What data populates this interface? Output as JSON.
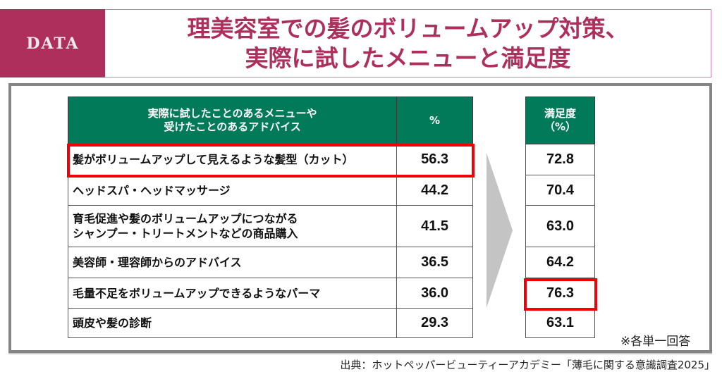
{
  "badge": {
    "label": "DATA",
    "color": "#AE2F5C"
  },
  "title": {
    "line1": "理美容室での髪のボリュームアップ対策、",
    "line2": "実際に試したメニューと満足度",
    "color": "#AE2F5C"
  },
  "table_left": {
    "header_label_line1": "実際に試したことのあるメニューや",
    "header_label_line2": "受けたことのあるアドバイス",
    "header_pct": "%",
    "header_color": "#007A58",
    "rows": [
      {
        "label": "髪がボリュームアップして見えるような髪型（カット）",
        "pct": "56.3",
        "highlighted": true
      },
      {
        "label": "ヘッドスパ・ヘッドマッサージ",
        "pct": "44.2"
      },
      {
        "label_line1": "育毛促進や髪のボリュームアップにつながる",
        "label_line2": "シャンプー・トリートメントなどの商品購入",
        "pct": "41.5"
      },
      {
        "label": "美容師・理容師からのアドバイス",
        "pct": "36.5"
      },
      {
        "label": "毛量不足をボリュームアップできるようなパーマ",
        "pct": "36.0"
      },
      {
        "label": "頭皮や髪の診断",
        "pct": "29.3"
      }
    ]
  },
  "table_right": {
    "header_line1": "満足度",
    "header_line2": "（%）",
    "rows": [
      {
        "value": "72.8"
      },
      {
        "value": "70.4"
      },
      {
        "value": "63.0"
      },
      {
        "value": "64.2"
      },
      {
        "value": "76.3",
        "highlighted": true
      },
      {
        "value": "63.1"
      }
    ]
  },
  "highlight_color": "#F0000A",
  "note": "※各単一回答",
  "source": "出典：ホットペッパービューティーアカデミー「薄毛に関する意識調査2025」",
  "chart_data": {
    "type": "table",
    "title": "理美容室での髪のボリュームアップ対策、実際に試したメニューと満足度",
    "columns": [
      "実際に試したことのあるメニューや受けたことのあるアドバイス",
      "%",
      "満足度（%）"
    ],
    "rows": [
      [
        "髪がボリュームアップして見えるような髪型（カット）",
        56.3,
        72.8
      ],
      [
        "ヘッドスパ・ヘッドマッサージ",
        44.2,
        70.4
      ],
      [
        "育毛促進や髪のボリュームアップにつながるシャンプー・トリートメントなどの商品購入",
        41.5,
        63.0
      ],
      [
        "美容師・理容師からのアドバイス",
        36.5,
        64.2
      ],
      [
        "毛量不足をボリュームアップできるようなパーマ",
        36.0,
        76.3
      ],
      [
        "頭皮や髪の診断",
        29.3,
        63.1
      ]
    ],
    "annotations": [
      "※各単一回答"
    ]
  }
}
